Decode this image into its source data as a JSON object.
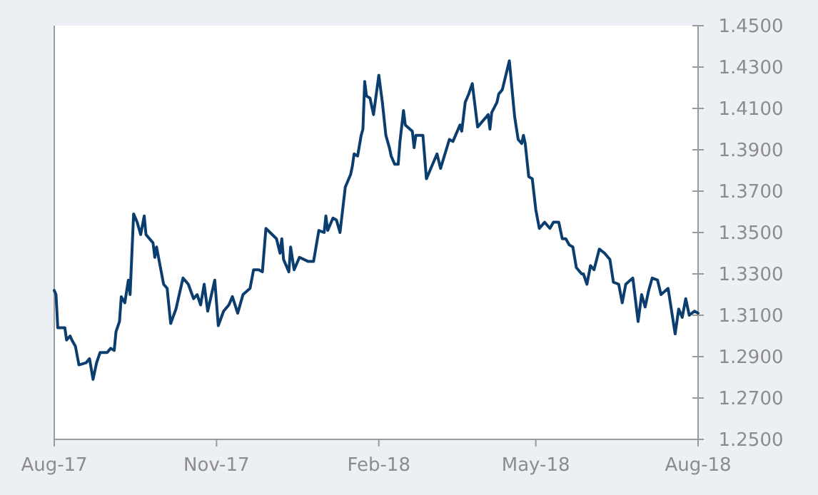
{
  "chart_data": {
    "type": "line",
    "xlim": [
      "2017-08-01",
      "2018-08-01"
    ],
    "ylim": [
      1.25,
      1.45
    ],
    "xticks": [
      {
        "value": "2017-08-01",
        "label": "Aug-17"
      },
      {
        "value": "2017-11-01",
        "label": "Nov-17"
      },
      {
        "value": "2018-02-01",
        "label": "Feb-18"
      },
      {
        "value": "2018-05-01",
        "label": "May-18"
      },
      {
        "value": "2018-08-01",
        "label": "Aug-18"
      }
    ],
    "yticks": [
      {
        "value": 1.25,
        "label": "1.2500"
      },
      {
        "value": 1.27,
        "label": "1.2700"
      },
      {
        "value": 1.29,
        "label": "1.2900"
      },
      {
        "value": 1.31,
        "label": "1.3100"
      },
      {
        "value": 1.33,
        "label": "1.3300"
      },
      {
        "value": 1.35,
        "label": "1.3500"
      },
      {
        "value": 1.37,
        "label": "1.3700"
      },
      {
        "value": 1.39,
        "label": "1.3900"
      },
      {
        "value": 1.41,
        "label": "1.4100"
      },
      {
        "value": 1.43,
        "label": "1.4300"
      },
      {
        "value": 1.45,
        "label": "1.4500"
      }
    ],
    "grid": false,
    "marker": "none",
    "line_style": "solid",
    "x": [
      "2017-08-01",
      "2017-08-02",
      "2017-08-03",
      "2017-08-07",
      "2017-08-08",
      "2017-08-10",
      "2017-08-11",
      "2017-08-13",
      "2017-08-15",
      "2017-08-19",
      "2017-08-21",
      "2017-08-23",
      "2017-08-25",
      "2017-08-27",
      "2017-08-31",
      "2017-09-02",
      "2017-09-04",
      "2017-09-05",
      "2017-09-07",
      "2017-09-08",
      "2017-09-10",
      "2017-09-12",
      "2017-09-13",
      "2017-09-15",
      "2017-09-17",
      "2017-09-19",
      "2017-09-21",
      "2017-09-22",
      "2017-09-26",
      "2017-09-27",
      "2017-09-28",
      "2017-10-02",
      "2017-10-04",
      "2017-10-06",
      "2017-10-09",
      "2017-10-13",
      "2017-10-16",
      "2017-10-19",
      "2017-10-21",
      "2017-10-23",
      "2017-10-25",
      "2017-10-27",
      "2017-10-31",
      "2017-11-02",
      "2017-11-05",
      "2017-11-08",
      "2017-11-10",
      "2017-11-13",
      "2017-11-16",
      "2017-11-20",
      "2017-11-22",
      "2017-11-25",
      "2017-11-27",
      "2017-11-29",
      "2017-12-05",
      "2017-12-07",
      "2017-12-08",
      "2017-12-09",
      "2017-12-12",
      "2017-12-13",
      "2017-12-15",
      "2017-12-18",
      "2017-12-23",
      "2017-12-26",
      "2017-12-29",
      "2018-01-01",
      "2018-01-02",
      "2018-01-03",
      "2018-01-06",
      "2018-01-08",
      "2018-01-10",
      "2018-01-13",
      "2018-01-16",
      "2018-01-17",
      "2018-01-18",
      "2018-01-20",
      "2018-01-22",
      "2018-01-23",
      "2018-01-24",
      "2018-01-25",
      "2018-01-27",
      "2018-01-29",
      "2018-02-01",
      "2018-02-03",
      "2018-02-05",
      "2018-02-07",
      "2018-02-08",
      "2018-02-10",
      "2018-02-12",
      "2018-02-13",
      "2018-02-15",
      "2018-02-16",
      "2018-02-20",
      "2018-02-21",
      "2018-02-22",
      "2018-02-26",
      "2018-02-28",
      "2018-03-02",
      "2018-03-06",
      "2018-03-08",
      "2018-03-13",
      "2018-03-15",
      "2018-03-19",
      "2018-03-20",
      "2018-03-22",
      "2018-03-24",
      "2018-03-26",
      "2018-03-29",
      "2018-04-04",
      "2018-04-05",
      "2018-04-06",
      "2018-04-09",
      "2018-04-10",
      "2018-04-12",
      "2018-04-16",
      "2018-04-19",
      "2018-04-21",
      "2018-04-23",
      "2018-04-24",
      "2018-04-25",
      "2018-04-27",
      "2018-04-29",
      "2018-05-01",
      "2018-05-03",
      "2018-05-06",
      "2018-05-09",
      "2018-05-11",
      "2018-05-14",
      "2018-05-16",
      "2018-05-18",
      "2018-05-20",
      "2018-05-22",
      "2018-05-24",
      "2018-05-27",
      "2018-05-28",
      "2018-05-30",
      "2018-06-01",
      "2018-06-03",
      "2018-06-06",
      "2018-06-09",
      "2018-06-12",
      "2018-06-14",
      "2018-06-17",
      "2018-06-19",
      "2018-06-21",
      "2018-06-25",
      "2018-06-28",
      "2018-06-30",
      "2018-07-02",
      "2018-07-04",
      "2018-07-06",
      "2018-07-09",
      "2018-07-11",
      "2018-07-15",
      "2018-07-19",
      "2018-07-21",
      "2018-07-23",
      "2018-07-25",
      "2018-07-27",
      "2018-07-30",
      "2018-08-01"
    ],
    "series": [
      {
        "color": "#0b3e6f",
        "values": [
          1.322,
          1.32,
          1.304,
          1.304,
          1.298,
          1.3,
          1.298,
          1.295,
          1.286,
          1.287,
          1.289,
          1.279,
          1.287,
          1.292,
          1.292,
          1.294,
          1.293,
          1.302,
          1.307,
          1.319,
          1.316,
          1.327,
          1.32,
          1.359,
          1.355,
          1.349,
          1.358,
          1.349,
          1.345,
          1.338,
          1.343,
          1.325,
          1.323,
          1.306,
          1.313,
          1.328,
          1.325,
          1.318,
          1.32,
          1.315,
          1.325,
          1.312,
          1.327,
          1.305,
          1.312,
          1.315,
          1.319,
          1.311,
          1.32,
          1.323,
          1.332,
          1.332,
          1.331,
          1.352,
          1.347,
          1.34,
          1.347,
          1.337,
          1.331,
          1.343,
          1.332,
          1.338,
          1.336,
          1.336,
          1.351,
          1.35,
          1.358,
          1.351,
          1.357,
          1.356,
          1.35,
          1.372,
          1.378,
          1.382,
          1.388,
          1.387,
          1.397,
          1.4,
          1.423,
          1.416,
          1.415,
          1.407,
          1.426,
          1.413,
          1.397,
          1.391,
          1.387,
          1.383,
          1.383,
          1.394,
          1.409,
          1.402,
          1.399,
          1.391,
          1.397,
          1.397,
          1.376,
          1.38,
          1.388,
          1.381,
          1.395,
          1.394,
          1.402,
          1.399,
          1.413,
          1.417,
          1.422,
          1.401,
          1.407,
          1.4,
          1.408,
          1.413,
          1.417,
          1.419,
          1.433,
          1.406,
          1.395,
          1.393,
          1.397,
          1.393,
          1.377,
          1.376,
          1.361,
          1.352,
          1.355,
          1.352,
          1.355,
          1.355,
          1.347,
          1.347,
          1.344,
          1.343,
          1.333,
          1.33,
          1.33,
          1.325,
          1.334,
          1.332,
          1.342,
          1.34,
          1.337,
          1.326,
          1.325,
          1.316,
          1.325,
          1.328,
          1.307,
          1.32,
          1.314,
          1.322,
          1.328,
          1.327,
          1.32,
          1.323,
          1.301,
          1.313,
          1.309,
          1.318,
          1.31,
          1.312,
          1.311
        ]
      }
    ]
  }
}
